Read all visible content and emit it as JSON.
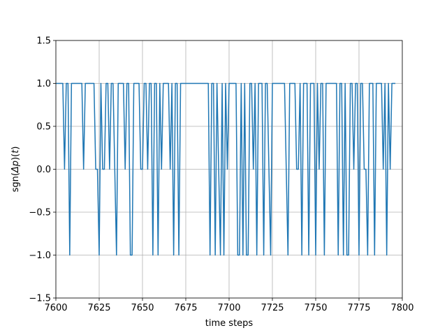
{
  "chart_data": {
    "type": "line",
    "title": "",
    "xlabel": "time steps",
    "ylabel_prefix": "sgn(",
    "ylabel_delta": "Δ",
    "ylabel_p": "p",
    "ylabel_mid": ")(",
    "ylabel_t": "t",
    "ylabel_suffix": ")",
    "xlim": [
      7600,
      7800
    ],
    "ylim": [
      -1.5,
      1.5
    ],
    "xticks": [
      7600,
      7625,
      7650,
      7675,
      7700,
      7725,
      7750,
      7775,
      7800
    ],
    "xtick_labels": [
      "7600",
      "7625",
      "7650",
      "7675",
      "7700",
      "7725",
      "7750",
      "7775",
      "7800"
    ],
    "yticks": [
      -1.5,
      -1.0,
      -0.5,
      0.0,
      0.5,
      1.0,
      1.5
    ],
    "ytick_labels": [
      "−1.5",
      "−1.0",
      "−0.5",
      "0.0",
      "0.5",
      "1.0",
      "1.5"
    ],
    "grid": true,
    "line_color": "#1f77b4",
    "series": [
      {
        "x_start": 7600,
        "values": [
          1,
          1,
          1,
          1,
          1,
          0,
          1,
          1,
          -1,
          1,
          1,
          1,
          1,
          1,
          1,
          1,
          0,
          1,
          1,
          1,
          1,
          1,
          1,
          0,
          0,
          -1,
          1,
          0,
          0,
          1,
          1,
          0,
          1,
          1,
          0,
          -1,
          1,
          1,
          1,
          1,
          0,
          1,
          1,
          -1,
          -1,
          1,
          1,
          1,
          1,
          0,
          0,
          1,
          1,
          0,
          1,
          1,
          -1,
          1,
          1,
          -1,
          1,
          0,
          1,
          1,
          1,
          1,
          0,
          1,
          -1,
          1,
          1,
          -1,
          1,
          1,
          1,
          1,
          1,
          1,
          1,
          1,
          1,
          1,
          1,
          1,
          1,
          1,
          1,
          1,
          1,
          -1,
          1,
          1,
          -1,
          1,
          0,
          -1,
          1,
          -1,
          1,
          0,
          1,
          1,
          1,
          1,
          1,
          -1,
          -1,
          1,
          -1,
          1,
          -1,
          -1,
          1,
          1,
          0,
          1,
          -1,
          1,
          1,
          1,
          -1,
          1,
          1,
          0,
          -1,
          1,
          1,
          1,
          1,
          1,
          1,
          1,
          1,
          0,
          -1,
          1,
          1,
          1,
          1,
          0,
          0,
          1,
          -1,
          1,
          1,
          1,
          -1,
          1,
          1,
          1,
          -1,
          1,
          0,
          1,
          1,
          -1,
          1,
          1,
          1,
          1,
          1,
          1,
          1,
          -1,
          1,
          1,
          -1,
          1,
          -1,
          -1,
          1,
          1,
          0,
          1,
          1,
          -1,
          1,
          1,
          0,
          0,
          -1,
          1,
          1,
          1,
          -1,
          1,
          1,
          1,
          1,
          0,
          1,
          -1,
          1,
          0,
          1,
          1,
          1
        ]
      }
    ]
  }
}
